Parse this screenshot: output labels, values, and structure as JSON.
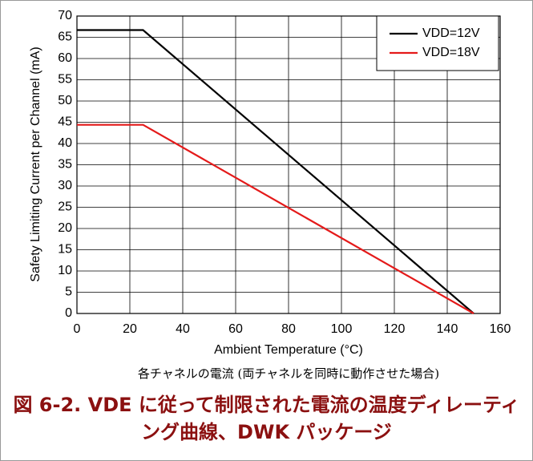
{
  "chart_data": {
    "type": "line",
    "x": [
      0,
      25,
      150
    ],
    "series": [
      {
        "name": "VDD=12V",
        "color": "#000000",
        "values": [
          66.7,
          66.7,
          0
        ]
      },
      {
        "name": "VDD=18V",
        "color": "#e41a1a",
        "values": [
          44.4,
          44.4,
          0
        ]
      }
    ],
    "xlim": [
      0,
      160
    ],
    "xticks": [
      0,
      20,
      40,
      60,
      80,
      100,
      120,
      140,
      160
    ],
    "ylim": [
      0,
      70
    ],
    "yticks": [
      0,
      5,
      10,
      15,
      20,
      25,
      30,
      35,
      40,
      45,
      50,
      55,
      60,
      65,
      70
    ],
    "xlabel": "Ambient Temperature (°C)",
    "ylabel": "Safety Limiting Current per Channel (mA)",
    "grid": true,
    "legend": "upper right",
    "subtitle": "各チャネルの電流 (両チャネルを同時に動作させた場合)",
    "title": "図 6-2. VDE に従って制限された電流の温度ディレーティング曲線、DWK パッケージ"
  }
}
